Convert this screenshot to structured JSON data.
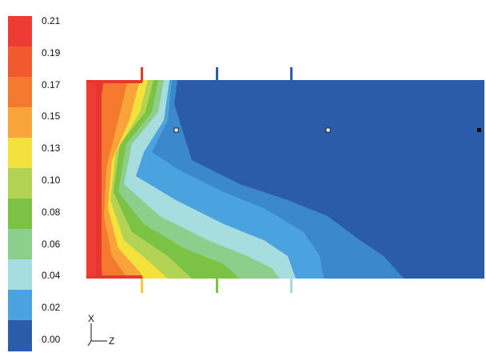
{
  "chart_data": {
    "type": "heatmap",
    "title": "",
    "colorbar": {
      "tick_labels": [
        "0.21",
        "0.19",
        "0.17",
        "0.15",
        "0.13",
        "0.10",
        "0.08",
        "0.06",
        "0.04",
        "0.02",
        "0.00"
      ],
      "colors": [
        "#ee3b34",
        "#f15a2e",
        "#f47a2e",
        "#f9a43a",
        "#f4e13c",
        "#b2d354",
        "#7cc244",
        "#8ccf8c",
        "#a8dde0",
        "#4aa3de",
        "#2b5caa"
      ]
    },
    "axes_triad": {
      "vertical": "X",
      "horizontal": "Z"
    },
    "markers": [
      "#e8352e",
      "#2e5cad",
      "#2e5cad",
      "#f9c93c",
      "#7cc244",
      "#a8dde0"
    ]
  }
}
